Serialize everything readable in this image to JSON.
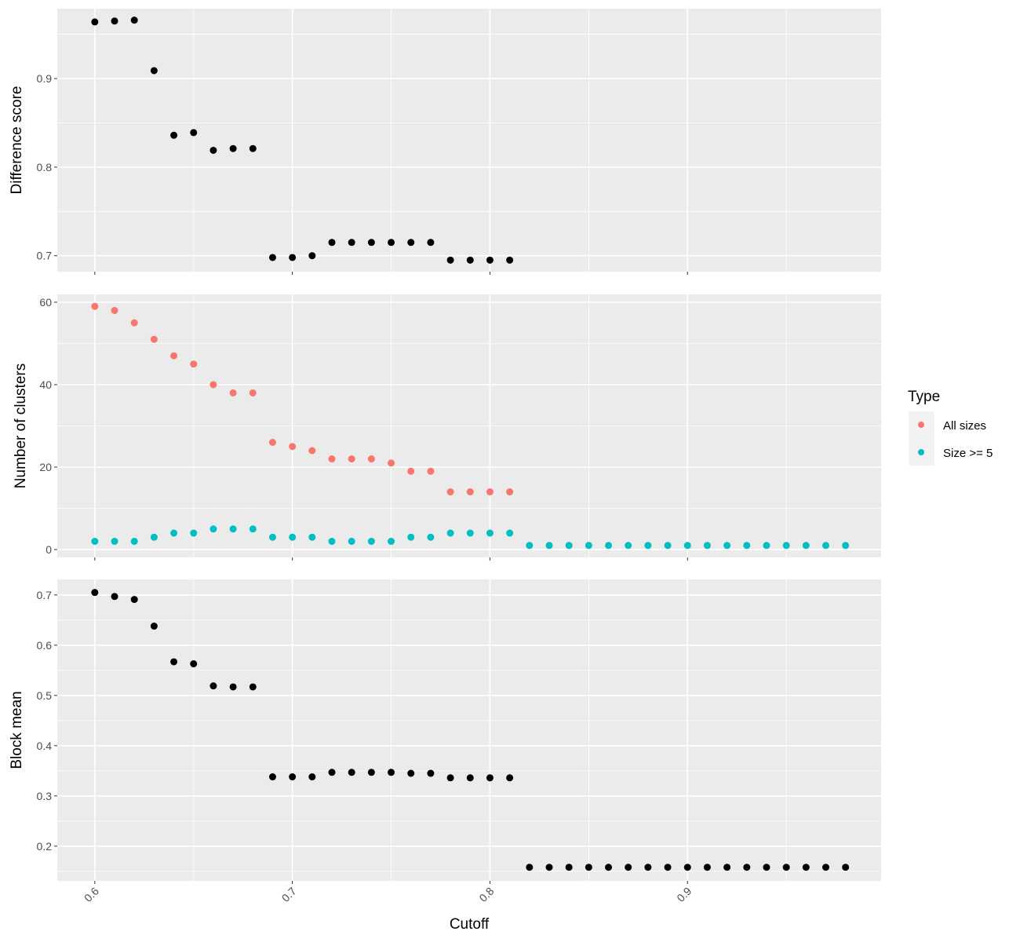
{
  "chart_data": [
    {
      "type": "scatter",
      "ylabel": "Difference score",
      "ylim": [
        0.682,
        0.979
      ],
      "yticks": [
        0.7,
        0.8,
        0.9
      ],
      "ytick_labels": [
        "0.7",
        "0.8",
        "0.9"
      ],
      "series": [
        {
          "name": "Difference score",
          "color": "#000000",
          "x": [
            0.6,
            0.61,
            0.62,
            0.63,
            0.64,
            0.65,
            0.66,
            0.67,
            0.68,
            0.69,
            0.7,
            0.71,
            0.72,
            0.73,
            0.74,
            0.75,
            0.76,
            0.77,
            0.78,
            0.79,
            0.8,
            0.81
          ],
          "y": [
            0.964,
            0.965,
            0.966,
            0.909,
            0.836,
            0.839,
            0.819,
            0.821,
            0.821,
            0.698,
            0.698,
            0.7,
            0.715,
            0.715,
            0.715,
            0.715,
            0.715,
            0.715,
            0.695,
            0.695,
            0.695,
            0.695
          ]
        }
      ]
    },
    {
      "type": "scatter",
      "ylabel": "Number of clusters",
      "ylim": [
        -1.9,
        61.9
      ],
      "yticks": [
        0,
        20,
        40,
        60
      ],
      "ytick_labels": [
        "0",
        "20",
        "40",
        "60"
      ],
      "series": [
        {
          "name": "All sizes",
          "color": "#F8766D",
          "x": [
            0.6,
            0.61,
            0.62,
            0.63,
            0.64,
            0.65,
            0.66,
            0.67,
            0.68,
            0.69,
            0.7,
            0.71,
            0.72,
            0.73,
            0.74,
            0.75,
            0.76,
            0.77,
            0.78,
            0.79,
            0.8,
            0.81
          ],
          "y": [
            59,
            58,
            55,
            51,
            47,
            45,
            40,
            38,
            38,
            26,
            25,
            24,
            22,
            22,
            22,
            21,
            19,
            19,
            14,
            14,
            14,
            14
          ]
        },
        {
          "name": "Size >= 5",
          "color": "#00BFC4",
          "x": [
            0.6,
            0.61,
            0.62,
            0.63,
            0.64,
            0.65,
            0.66,
            0.67,
            0.68,
            0.69,
            0.7,
            0.71,
            0.72,
            0.73,
            0.74,
            0.75,
            0.76,
            0.77,
            0.78,
            0.79,
            0.8,
            0.81,
            0.82,
            0.83,
            0.84,
            0.85,
            0.86,
            0.87,
            0.88,
            0.89,
            0.9,
            0.91,
            0.92,
            0.93,
            0.94,
            0.95,
            0.96,
            0.97,
            0.98
          ],
          "y": [
            2,
            2,
            2,
            3,
            4,
            4,
            5,
            5,
            5,
            3,
            3,
            3,
            2,
            2,
            2,
            2,
            3,
            3,
            4,
            4,
            4,
            4,
            1,
            1,
            1,
            1,
            1,
            1,
            1,
            1,
            1,
            1,
            1,
            1,
            1,
            1,
            1,
            1,
            1
          ]
        }
      ]
    },
    {
      "type": "scatter",
      "ylabel": "Block mean",
      "ylim": [
        0.131,
        0.731
      ],
      "yticks": [
        0.2,
        0.3,
        0.4,
        0.5,
        0.6,
        0.7
      ],
      "ytick_labels": [
        "0.2",
        "0.3",
        "0.4",
        "0.5",
        "0.6",
        "0.7"
      ],
      "series": [
        {
          "name": "Block mean",
          "color": "#000000",
          "x": [
            0.6,
            0.61,
            0.62,
            0.63,
            0.64,
            0.65,
            0.66,
            0.67,
            0.68,
            0.69,
            0.7,
            0.71,
            0.72,
            0.73,
            0.74,
            0.75,
            0.76,
            0.77,
            0.78,
            0.79,
            0.8,
            0.81,
            0.82,
            0.83,
            0.84,
            0.85,
            0.86,
            0.87,
            0.88,
            0.89,
            0.9,
            0.91,
            0.92,
            0.93,
            0.94,
            0.95,
            0.96,
            0.97,
            0.98
          ],
          "y": [
            0.705,
            0.697,
            0.691,
            0.638,
            0.567,
            0.563,
            0.519,
            0.517,
            0.517,
            0.338,
            0.338,
            0.338,
            0.347,
            0.347,
            0.347,
            0.347,
            0.345,
            0.345,
            0.336,
            0.336,
            0.336,
            0.336,
            0.158,
            0.158,
            0.158,
            0.158,
            0.158,
            0.158,
            0.158,
            0.158,
            0.158,
            0.158,
            0.158,
            0.158,
            0.158,
            0.158,
            0.158,
            0.158,
            0.158
          ]
        }
      ]
    }
  ],
  "xaxis": {
    "label": "Cutoff",
    "xlim": [
      0.581,
      0.998
    ],
    "ticks": [
      0.6,
      0.7,
      0.8,
      0.9
    ],
    "tick_labels": [
      "0.6",
      "0.7",
      "0.8",
      "0.9"
    ]
  },
  "legend": {
    "title": "Type",
    "placement": "right",
    "entries": [
      {
        "label": "All sizes",
        "color": "#F8766D"
      },
      {
        "label": "Size >= 5",
        "color": "#00BFC4"
      }
    ]
  }
}
